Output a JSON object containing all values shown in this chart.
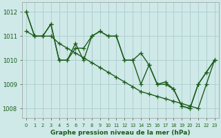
{
  "xlabel": "Graphe pression niveau de la mer (hPa)",
  "background_color": "#cfe8e8",
  "grid_color": "#aacccc",
  "line_color": "#1a5c1a",
  "x_values": [
    0,
    1,
    2,
    3,
    4,
    5,
    6,
    7,
    8,
    9,
    10,
    11,
    12,
    13,
    14,
    15,
    16,
    17,
    18,
    19,
    20,
    21,
    22,
    23
  ],
  "line1": [
    1012.0,
    1011.0,
    1011.0,
    1011.5,
    1010.0,
    1010.0,
    1010.7,
    1010.0,
    1011.0,
    1011.2,
    1011.0,
    1011.0,
    1010.0,
    1010.0,
    1009.0,
    1009.8,
    1009.0,
    1009.0,
    1008.8,
    1008.1,
    1008.0,
    1009.0,
    1009.5,
    1010.0
  ],
  "line2": [
    1011.2,
    1011.0,
    1011.0,
    1011.0,
    1010.7,
    1010.5,
    1010.3,
    1010.1,
    1009.9,
    1009.7,
    1009.5,
    1009.3,
    1009.1,
    1008.9,
    1008.7,
    1008.6,
    1008.5,
    1008.4,
    1008.3,
    1008.2,
    1008.1,
    1008.0,
    1009.0,
    1010.0
  ],
  "line3": [
    1012.0,
    1011.0,
    1011.0,
    1011.5,
    1010.0,
    1010.0,
    1010.5,
    1010.5,
    1011.0,
    1011.2,
    1011.0,
    1011.0,
    1010.0,
    1010.0,
    1010.3,
    1009.8,
    1009.0,
    1009.1,
    1008.8,
    1008.1,
    1008.0,
    1009.0,
    1009.5,
    1010.0
  ],
  "ylim_min": 1007.6,
  "ylim_max": 1012.4,
  "yticks": [
    1008,
    1009,
    1010,
    1011,
    1012
  ],
  "marker": "+",
  "markersize": 4,
  "linewidth": 1.0
}
